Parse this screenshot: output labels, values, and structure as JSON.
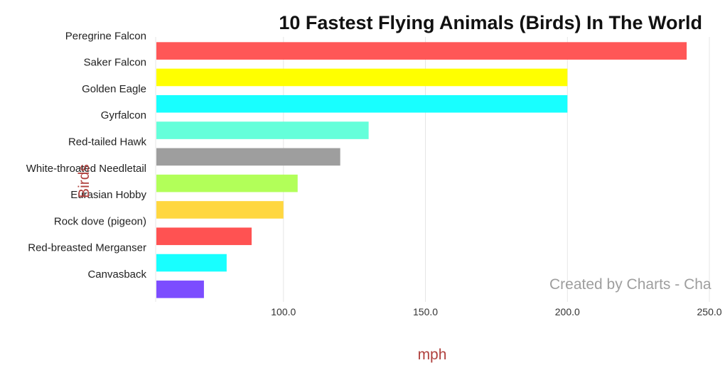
{
  "chart_data": {
    "type": "bar",
    "orientation": "horizontal",
    "title": "10 Fastest Flying Animals (Birds) In The World",
    "xlabel": "mph",
    "ylabel": "Birds",
    "categories": [
      "Peregrine Falcon",
      "Saker Falcon",
      "Golden Eagle",
      "Gyrfalcon",
      "Red-tailed Hawk",
      "White-throated Needletail",
      "Eurasian Hobby",
      "Rock dove (pigeon)",
      "Red-breasted Merganser",
      "Canvasback"
    ],
    "values": [
      242,
      200,
      200,
      130,
      120,
      105,
      100,
      88.8,
      80,
      72
    ],
    "colors": [
      "#ff5757",
      "#ffff00",
      "#18ffff",
      "#64ffda",
      "#9e9e9e",
      "#b2ff59",
      "#ffd740",
      "#ff5252",
      "#18ffff",
      "#7c4dff"
    ],
    "xlim": [
      55,
      255
    ],
    "xticks": [
      100,
      150,
      200,
      250
    ],
    "xtick_labels": [
      "100.0",
      "150.0",
      "200.0",
      "250.0"
    ],
    "grid": true,
    "axis_title_color": "#b0413e",
    "watermark": "Created by Charts - Cha"
  }
}
